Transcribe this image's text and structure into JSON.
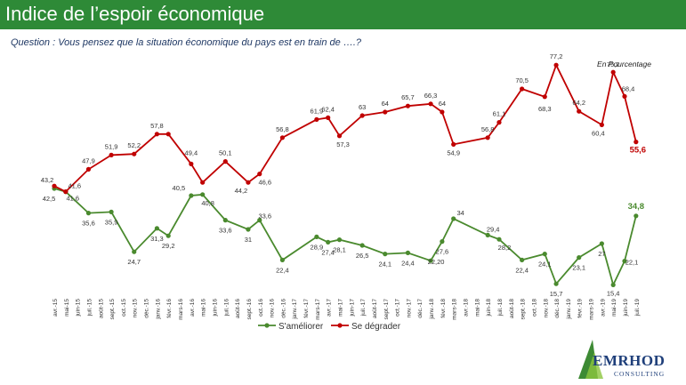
{
  "header": {
    "title": "Indice de l’espoir économique"
  },
  "question": "Question : Vous pensez que la situation économique du pays est en train de ….?",
  "unit_note": "En Pourcentage",
  "logo": {
    "name": "EMRHOD",
    "sub": "CONSULTING"
  },
  "colors": {
    "header_bg": "#2e8a37",
    "ameliorer": "#4a8a2e",
    "degrader": "#c00000"
  },
  "chart_data": {
    "type": "line",
    "categories": [
      "avr.-15",
      "mai-15",
      "juin-15",
      "juil.-15",
      "août-15",
      "sept.-15",
      "oct.-15",
      "nov.-15",
      "déc.-15",
      "janv.-16",
      "févr.-16",
      "mars-16",
      "avr.-16",
      "mai-16",
      "juin-16",
      "juil.-16",
      "août-16",
      "sept.-16",
      "oct.-16",
      "nov.-16",
      "déc.-16",
      "janv.-17",
      "févr.-17",
      "mars-17",
      "avr.-17",
      "mai-17",
      "juin-17",
      "juil.-17",
      "août-17",
      "sept.-17",
      "oct.-17",
      "nov.-17",
      "déc.-17",
      "janv.-18",
      "févr.-18",
      "mars-18",
      "avr.-18",
      "mai-18",
      "juin-18",
      "juil.-18",
      "août-18",
      "sept.-18",
      "oct.-18",
      "nov.-18",
      "déc.-18",
      "janv.-19",
      "févr.-19",
      "mars-19",
      "avr.-19",
      "mai-19",
      "juin-19",
      "juil.-19"
    ],
    "series": [
      {
        "name": "S'améliorer",
        "color": "#4a8a2e",
        "points": [
          [
            0,
            42.5,
            "42,5"
          ],
          [
            1,
            41.6,
            "41,6"
          ],
          [
            3,
            35.6,
            "35,6"
          ],
          [
            5,
            35.9,
            "35,9"
          ],
          [
            7,
            24.7,
            "24,7"
          ],
          [
            9,
            31.3,
            "31,3"
          ],
          [
            10,
            29.2,
            "29,2"
          ],
          [
            12,
            40.5,
            "40,5"
          ],
          [
            13,
            40.8,
            "40,8"
          ],
          [
            15,
            33.6,
            "33,6"
          ],
          [
            17,
            31,
            "31"
          ],
          [
            18,
            33.6,
            "33,6"
          ],
          [
            20,
            22.4,
            "22,4"
          ],
          [
            23,
            28.9,
            "28,9"
          ],
          [
            24,
            27.4,
            "27,4"
          ],
          [
            25,
            28.1,
            "28,1"
          ],
          [
            27,
            26.5,
            "26,5"
          ],
          [
            29,
            24.1,
            "24,1"
          ],
          [
            31,
            24.4,
            "24,4"
          ],
          [
            33,
            22.2,
            "22,20"
          ],
          [
            34,
            27.6,
            "27,6"
          ],
          [
            35,
            34,
            "34"
          ],
          [
            38,
            29.4,
            "29,4"
          ],
          [
            39,
            28.2,
            "28,2"
          ],
          [
            41,
            22.4,
            "22,4"
          ],
          [
            43,
            24.1,
            "24,1"
          ],
          [
            44,
            15.7,
            "15,7"
          ],
          [
            46,
            23.1,
            "23,1"
          ],
          [
            48,
            27,
            "27"
          ],
          [
            49,
            15.4,
            "15,4"
          ],
          [
            50,
            22.1,
            "22,1"
          ],
          [
            51,
            34.8,
            "34,8"
          ]
        ]
      },
      {
        "name": "Se dégrader",
        "color": "#c00000",
        "points": [
          [
            0,
            43.2,
            "43,2"
          ],
          [
            1,
            41.6,
            "41,6"
          ],
          [
            3,
            47.9,
            "47,9"
          ],
          [
            5,
            51.9,
            "51,9"
          ],
          [
            7,
            52.2,
            "52,2"
          ],
          [
            9,
            57.8,
            "57,8"
          ],
          [
            10,
            57.8,
            ""
          ],
          [
            12,
            49.4,
            "49,4"
          ],
          [
            13,
            44.2,
            ""
          ],
          [
            15,
            50.1,
            "50,1"
          ],
          [
            17,
            44.2,
            "44,2"
          ],
          [
            18,
            46.6,
            "46,6"
          ],
          [
            20,
            56.8,
            "56,8"
          ],
          [
            23,
            61.9,
            "61,9"
          ],
          [
            24,
            62.4,
            "62,4"
          ],
          [
            25,
            57.3,
            "57,3"
          ],
          [
            27,
            63,
            "63"
          ],
          [
            29,
            64,
            "64"
          ],
          [
            31,
            65.7,
            "65,7"
          ],
          [
            33,
            66.3,
            "66,3"
          ],
          [
            34,
            64,
            "64"
          ],
          [
            35,
            54.9,
            "54,9"
          ],
          [
            38,
            56.8,
            "56,8"
          ],
          [
            39,
            61.1,
            "61,1"
          ],
          [
            41,
            70.5,
            "70,5"
          ],
          [
            43,
            68.3,
            "68,3"
          ],
          [
            44,
            77.2,
            "77,2"
          ],
          [
            46,
            64.2,
            "64,2"
          ],
          [
            48,
            60.4,
            "60,4"
          ],
          [
            49,
            75.2,
            "75,2"
          ],
          [
            50,
            68.4,
            "68,4"
          ],
          [
            51,
            55.6,
            "55,6"
          ]
        ]
      }
    ]
  }
}
